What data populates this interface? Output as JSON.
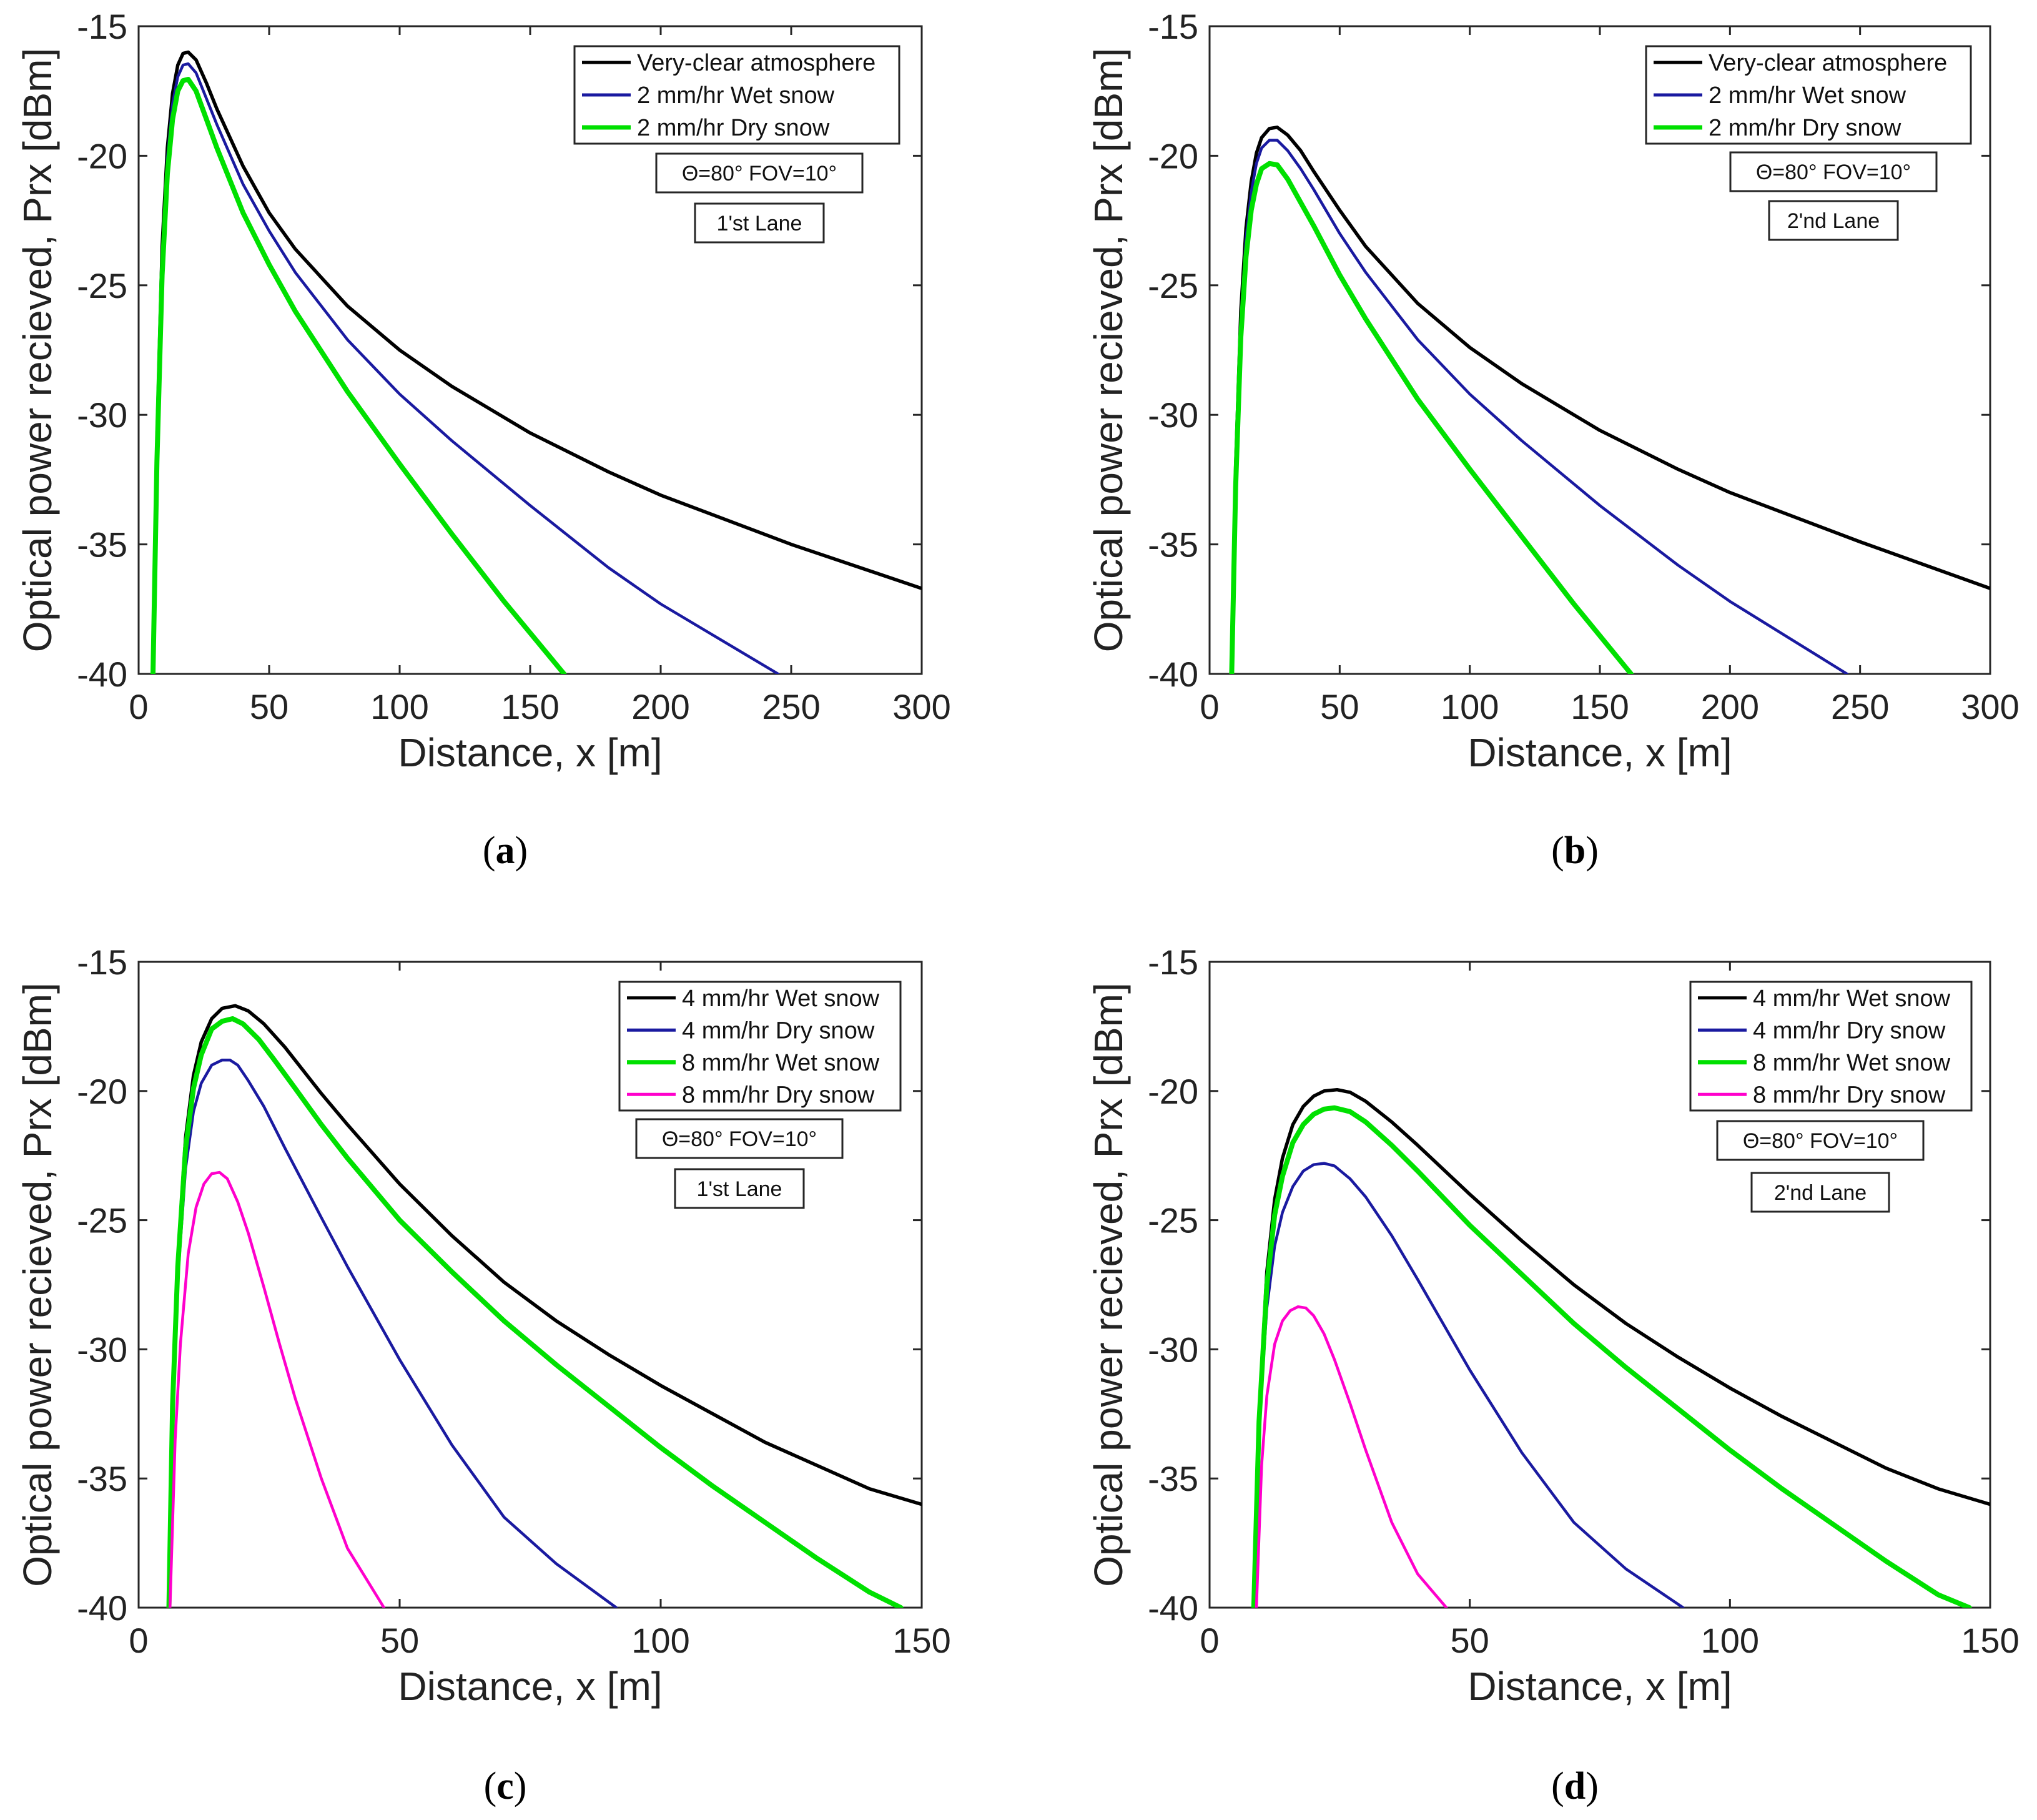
{
  "colors": {
    "black": "#000000",
    "blue": "#1a1aa0",
    "green": "#00e000",
    "magenta": "#ff00cc"
  },
  "chart_data": [
    {
      "type": "line",
      "panel": "a",
      "caption": {
        "open": "(",
        "letter": "a",
        "close": ")"
      },
      "xlabel": "Distance, x [m]",
      "ylabel": "Optical power recieved, Prx [dBm]",
      "xlim": [
        0,
        300
      ],
      "ylim": [
        -40,
        -15
      ],
      "xticks": [
        "0",
        "50",
        "100",
        "150",
        "200",
        "250",
        "300"
      ],
      "yticks": [
        "-15",
        "-20",
        "-25",
        "-30",
        "-35",
        "-40"
      ],
      "legend_position": "top-right",
      "annotations": [
        "Θ=80° FOV=10°",
        "1'st Lane"
      ],
      "series": [
        {
          "name": "Very-clear atmosphere",
          "color": "black",
          "x": [
            5.5,
            7,
            9,
            11,
            13,
            15,
            17,
            19,
            22,
            26,
            30,
            40,
            50,
            60,
            80,
            100,
            120,
            150,
            180,
            200,
            250,
            300
          ],
          "y": [
            -40,
            -31,
            -23.5,
            -19.7,
            -17.6,
            -16.5,
            -16.05,
            -16,
            -16.3,
            -17.2,
            -18.2,
            -20.4,
            -22.2,
            -23.6,
            -25.8,
            -27.5,
            -28.9,
            -30.7,
            -32.2,
            -33.1,
            -35,
            -36.7
          ]
        },
        {
          "name": "2 mm/hr Wet snow",
          "color": "blue",
          "x": [
            5.5,
            7,
            9,
            11,
            13,
            15,
            17,
            19,
            22,
            26,
            30,
            40,
            50,
            60,
            80,
            100,
            120,
            150,
            180,
            200,
            245
          ],
          "y": [
            -40,
            -31.3,
            -24,
            -20.1,
            -18,
            -16.95,
            -16.5,
            -16.45,
            -16.8,
            -17.8,
            -18.8,
            -21.1,
            -22.9,
            -24.5,
            -27.1,
            -29.2,
            -31,
            -33.5,
            -35.9,
            -37.3,
            -40
          ]
        },
        {
          "name": "2 mm/hr Dry snow",
          "color": "green",
          "x": [
            5.5,
            7,
            9,
            11,
            13,
            15,
            17,
            19,
            22,
            26,
            30,
            40,
            50,
            60,
            80,
            100,
            120,
            140,
            163
          ],
          "y": [
            -40,
            -31.8,
            -24.6,
            -20.7,
            -18.6,
            -17.5,
            -17.1,
            -17.05,
            -17.5,
            -18.6,
            -19.7,
            -22.2,
            -24.2,
            -26,
            -29.1,
            -31.9,
            -34.6,
            -37.2,
            -40
          ]
        }
      ]
    },
    {
      "type": "line",
      "panel": "b",
      "caption": {
        "open": "(",
        "letter": "b",
        "close": ")"
      },
      "xlabel": "Distance, x [m]",
      "ylabel": "Optical power recieved, Prx [dBm]",
      "xlim": [
        0,
        300
      ],
      "ylim": [
        -40,
        -15
      ],
      "xticks": [
        "0",
        "50",
        "100",
        "150",
        "200",
        "250",
        "300"
      ],
      "yticks": [
        "-15",
        "-20",
        "-25",
        "-30",
        "-35",
        "-40"
      ],
      "legend_position": "top-right",
      "annotations": [
        "Θ=80° FOV=10°",
        "2'nd Lane"
      ],
      "series": [
        {
          "name": "Very-clear atmosphere",
          "color": "black",
          "x": [
            8.5,
            10,
            12,
            14,
            16,
            18,
            20,
            23,
            26,
            30,
            35,
            40,
            50,
            60,
            80,
            100,
            120,
            150,
            180,
            200,
            250,
            300
          ],
          "y": [
            -40,
            -32,
            -26,
            -22.8,
            -21,
            -19.9,
            -19.3,
            -18.95,
            -18.9,
            -19.2,
            -19.8,
            -20.6,
            -22.1,
            -23.5,
            -25.7,
            -27.4,
            -28.8,
            -30.6,
            -32.1,
            -33,
            -34.9,
            -36.7
          ]
        },
        {
          "name": "2 mm/hr Wet snow",
          "color": "blue",
          "x": [
            8.5,
            10,
            12,
            14,
            16,
            18,
            20,
            23,
            26,
            30,
            35,
            40,
            50,
            60,
            80,
            100,
            120,
            150,
            180,
            200,
            245
          ],
          "y": [
            -40,
            -32.3,
            -26.4,
            -23.2,
            -21.4,
            -20.3,
            -19.7,
            -19.4,
            -19.4,
            -19.8,
            -20.5,
            -21.3,
            -23,
            -24.5,
            -27.1,
            -29.2,
            -31,
            -33.5,
            -35.8,
            -37.2,
            -40
          ]
        },
        {
          "name": "2 mm/hr Dry snow",
          "color": "green",
          "x": [
            8.5,
            10,
            12,
            14,
            16,
            18,
            20,
            23,
            26,
            30,
            35,
            40,
            50,
            60,
            80,
            100,
            120,
            140,
            162
          ],
          "y": [
            -40,
            -32.8,
            -27,
            -23.9,
            -22.1,
            -21.1,
            -20.5,
            -20.3,
            -20.35,
            -20.9,
            -21.8,
            -22.7,
            -24.6,
            -26.3,
            -29.4,
            -32.1,
            -34.7,
            -37.3,
            -40
          ]
        }
      ]
    },
    {
      "type": "line",
      "panel": "c",
      "caption": {
        "open": "(",
        "letter": "c",
        "close": ")"
      },
      "xlabel": "Distance, x [m]",
      "ylabel": "Optical power recieved, Prx [dBm]",
      "xlim": [
        0,
        150
      ],
      "ylim": [
        -40,
        -15
      ],
      "xticks": [
        "0",
        "50",
        "100",
        "150"
      ],
      "yticks": [
        "-15",
        "-20",
        "-25",
        "-30",
        "-35",
        "-40"
      ],
      "legend_position": "top-right",
      "annotations": [
        "Θ=80° FOV=10°",
        "1'st Lane"
      ],
      "series": [
        {
          "name": "4 mm/hr Wet snow",
          "color": "black",
          "x": [
            5.8,
            6.5,
            7.5,
            9,
            10.5,
            12,
            14,
            16,
            18.5,
            21,
            24,
            28,
            35,
            40,
            50,
            60,
            70,
            80,
            90,
            100,
            110,
            120,
            130,
            140,
            150
          ],
          "y": [
            -40,
            -32,
            -26.5,
            -21.8,
            -19.4,
            -18.1,
            -17.2,
            -16.8,
            -16.7,
            -16.9,
            -17.4,
            -18.3,
            -20.1,
            -21.3,
            -23.6,
            -25.6,
            -27.4,
            -28.9,
            -30.2,
            -31.4,
            -32.5,
            -33.6,
            -34.5,
            -35.4,
            -36
          ]
        },
        {
          "name": "4 mm/hr Dry snow",
          "color": "blue",
          "x": [
            5.8,
            6.5,
            7.5,
            9,
            10.5,
            12,
            14,
            16,
            17.5,
            19,
            21,
            24,
            28,
            35,
            40,
            50,
            60,
            70,
            80,
            91.5
          ],
          "y": [
            -40,
            -32.5,
            -27.3,
            -23,
            -20.8,
            -19.7,
            -19,
            -18.8,
            -18.8,
            -19,
            -19.6,
            -20.6,
            -22.2,
            -24.9,
            -26.8,
            -30.4,
            -33.7,
            -36.5,
            -38.3,
            -40
          ]
        },
        {
          "name": "8 mm/hr Wet snow",
          "color": "green",
          "x": [
            5.8,
            6.5,
            7.5,
            9,
            10.5,
            12,
            14,
            16,
            18,
            20,
            23,
            26,
            30,
            35,
            40,
            50,
            60,
            70,
            80,
            90,
            100,
            110,
            120,
            130,
            140,
            146
          ],
          "y": [
            -40,
            -32.2,
            -26.8,
            -22.2,
            -19.9,
            -18.6,
            -17.6,
            -17.3,
            -17.2,
            -17.4,
            -18,
            -18.8,
            -19.9,
            -21.3,
            -22.6,
            -25,
            -27,
            -28.9,
            -30.6,
            -32.2,
            -33.8,
            -35.3,
            -36.7,
            -38.1,
            -39.4,
            -40
          ]
        },
        {
          "name": "8 mm/hr Dry snow",
          "color": "magenta",
          "x": [
            6,
            7,
            8,
            9.5,
            11,
            12.5,
            14,
            15.5,
            17,
            19,
            21,
            24,
            27,
            30,
            35,
            40,
            47
          ],
          "y": [
            -40,
            -33.5,
            -29.8,
            -26.3,
            -24.5,
            -23.6,
            -23.2,
            -23.15,
            -23.4,
            -24.3,
            -25.5,
            -27.6,
            -29.8,
            -31.9,
            -35,
            -37.7,
            -40
          ]
        }
      ]
    },
    {
      "type": "line",
      "panel": "d",
      "caption": {
        "open": "(",
        "letter": "d",
        "close": ")"
      },
      "xlabel": "Distance, x [m]",
      "ylabel": "Optical power recieved, Prx [dBm]",
      "xlim": [
        0,
        150
      ],
      "ylim": [
        -40,
        -15
      ],
      "xticks": [
        "0",
        "50",
        "100",
        "150"
      ],
      "yticks": [
        "-15",
        "-20",
        "-25",
        "-30",
        "-35",
        "-40"
      ],
      "legend_position": "top-right",
      "annotations": [
        "Θ=80° FOV=10°",
        "2'nd Lane"
      ],
      "series": [
        {
          "name": "4 mm/hr Wet snow",
          "color": "black",
          "x": [
            8.5,
            9.5,
            11,
            12.5,
            14,
            16,
            18,
            20,
            22,
            24.5,
            27,
            30,
            35,
            40,
            50,
            60,
            70,
            80,
            90,
            100,
            110,
            120,
            130,
            140,
            150
          ],
          "y": [
            -40,
            -32.5,
            -27,
            -24.2,
            -22.6,
            -21.3,
            -20.6,
            -20.2,
            -20,
            -19.95,
            -20.05,
            -20.4,
            -21.2,
            -22.1,
            -24,
            -25.8,
            -27.5,
            -29,
            -30.3,
            -31.5,
            -32.6,
            -33.6,
            -34.6,
            -35.4,
            -36
          ]
        },
        {
          "name": "4 mm/hr Dry snow",
          "color": "blue",
          "x": [
            8.5,
            9.5,
            11,
            12.5,
            14,
            16,
            18,
            20,
            22,
            24,
            27,
            30,
            35,
            40,
            50,
            60,
            70,
            80,
            91
          ],
          "y": [
            -40,
            -33,
            -28.4,
            -26,
            -24.7,
            -23.7,
            -23.1,
            -22.85,
            -22.8,
            -22.9,
            -23.4,
            -24.1,
            -25.6,
            -27.3,
            -30.8,
            -34,
            -36.7,
            -38.5,
            -40
          ]
        },
        {
          "name": "8 mm/hr Wet snow",
          "color": "green",
          "x": [
            8.5,
            9.5,
            11,
            12.5,
            14,
            16,
            18,
            20,
            22,
            24,
            27,
            30,
            35,
            40,
            50,
            60,
            70,
            80,
            90,
            100,
            110,
            120,
            130,
            140,
            146
          ],
          "y": [
            -40,
            -32.8,
            -27.5,
            -24.8,
            -23.3,
            -22,
            -21.3,
            -20.9,
            -20.7,
            -20.65,
            -20.8,
            -21.2,
            -22.1,
            -23.1,
            -25.2,
            -27.1,
            -29,
            -30.7,
            -32.3,
            -33.9,
            -35.4,
            -36.8,
            -38.2,
            -39.5,
            -40
          ]
        },
        {
          "name": "8 mm/hr Dry snow",
          "color": "magenta",
          "x": [
            9,
            10,
            11,
            12.5,
            14,
            15.5,
            17,
            18.5,
            20,
            22,
            24,
            27,
            30,
            35,
            40,
            45.5
          ],
          "y": [
            -40,
            -34.5,
            -31.8,
            -29.8,
            -28.9,
            -28.5,
            -28.35,
            -28.4,
            -28.7,
            -29.4,
            -30.4,
            -32.1,
            -33.9,
            -36.7,
            -38.7,
            -40
          ]
        }
      ]
    }
  ]
}
